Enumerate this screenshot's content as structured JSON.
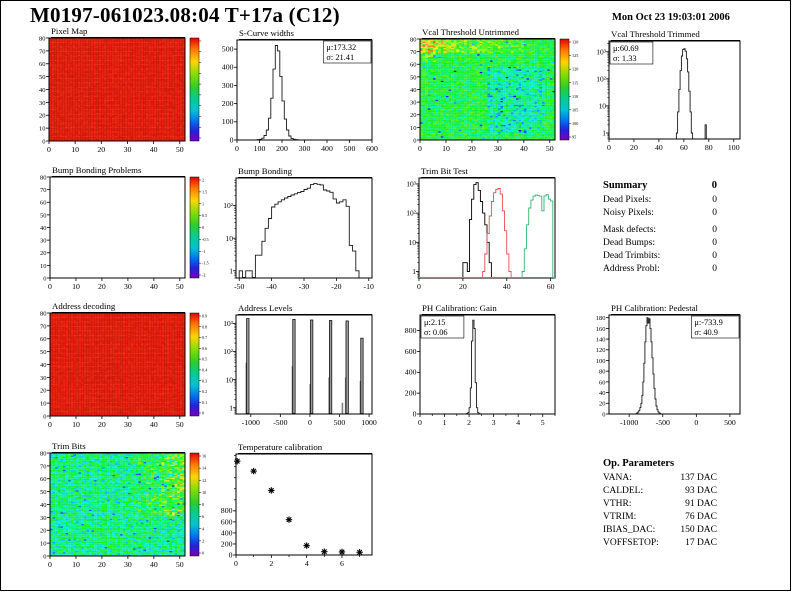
{
  "header": {
    "title": "M0197-061023.08:04 T+17a (C12)",
    "datetime": "Mon Oct 23 19:03:01 2006"
  },
  "summary": {
    "heading": "Summary",
    "heading_value": "0",
    "rows": [
      {
        "label": "Dead Pixels:",
        "value": "0"
      },
      {
        "label": "Noisy Pixels:",
        "value": "0"
      },
      {
        "label": "Mask defects:",
        "value": "0"
      },
      {
        "label": "Dead Bumps:",
        "value": "0"
      },
      {
        "label": "Dead Trimbits:",
        "value": "0"
      },
      {
        "label": "Address Probl:",
        "value": "0"
      }
    ]
  },
  "op_parameters": {
    "heading": "Op. Parameters",
    "rows": [
      {
        "label": "VANA:",
        "value": "137 DAC"
      },
      {
        "label": "CALDEL:",
        "value": "93 DAC"
      },
      {
        "label": "VTHR:",
        "value": "91 DAC"
      },
      {
        "label": "VTRIM:",
        "value": "76 DAC"
      },
      {
        "label": "IBIAS_DAC:",
        "value": "150 DAC"
      },
      {
        "label": "VOFFSETOP:",
        "value": "17 DAC"
      }
    ]
  },
  "chart_data": [
    {
      "key": "pixel_map",
      "type": "heatmap",
      "title": "Pixel Map",
      "x_range": [
        0,
        52
      ],
      "x_ticks": [
        0,
        10,
        20,
        30,
        40,
        50
      ],
      "y_scale": "lin",
      "y_range": [
        0,
        80
      ],
      "y_ticks": [
        0,
        10,
        20,
        30,
        40,
        50,
        60,
        70,
        80
      ],
      "grid": {
        "cols": 52,
        "rows": 80
      },
      "heat": {
        "mode": "red"
      },
      "colorbar": {
        "labels": []
      }
    },
    {
      "key": "scurve_widths",
      "type": "histogram",
      "title": "S-Curve widths",
      "x_range": [
        0,
        600
      ],
      "x_ticks": [
        0,
        100,
        200,
        300,
        400,
        500,
        600
      ],
      "y_scale": "lin",
      "y_range": [
        0,
        550
      ],
      "y_ticks": [
        0,
        100,
        200,
        300,
        400,
        500
      ],
      "stats": [
        "μ:173.32",
        "σ: 21.41"
      ],
      "stats_side": "right",
      "bins": {
        "start": 80,
        "width": 10,
        "values": [
          1,
          2,
          4,
          10,
          25,
          55,
          120,
          230,
          390,
          520,
          490,
          350,
          215,
          115,
          55,
          22,
          9,
          4,
          2,
          1
        ]
      }
    },
    {
      "key": "vcal_untrimmed",
      "type": "heatmap",
      "title": "Vcal Threshold Untrimmed",
      "x_range": [
        0,
        52
      ],
      "x_ticks": [
        0,
        10,
        20,
        30,
        40,
        50
      ],
      "y_scale": "lin",
      "y_range": [
        0,
        80
      ],
      "y_ticks": [
        0,
        10,
        20,
        30,
        40,
        50,
        60,
        70,
        80
      ],
      "grid": {
        "cols": 52,
        "rows": 80
      },
      "heat": {
        "mode": "vcal",
        "value_range": [
          90,
          132
        ]
      },
      "colorbar": {
        "labels": [
          "130",
          "125",
          "120",
          "115",
          "110",
          "105",
          "100",
          "95"
        ]
      }
    },
    {
      "key": "vcal_trimmed",
      "type": "histogram",
      "title": "Vcal Threshold Trimmed",
      "x_range": [
        0,
        105
      ],
      "x_ticks": [
        0,
        20,
        40,
        60,
        80,
        100
      ],
      "y_scale": "log",
      "y_range": [
        0.6,
        2500
      ],
      "y_ticks": [
        {
          "v": 1,
          "label": "1"
        },
        {
          "v": 10,
          "label": "10"
        },
        {
          "v": 100,
          "label": "10²"
        },
        {
          "v": 1000,
          "label": "10³"
        }
      ],
      "stats": [
        "μ:60.69",
        "σ: 1.33"
      ],
      "stats_side": "left",
      "bins": {
        "start": 54,
        "width": 1,
        "values": [
          1,
          6,
          40,
          200,
          700,
          1200,
          1300,
          1050,
          550,
          180,
          35,
          6,
          1
        ]
      },
      "extra_bins": [
        {
          "x": 77,
          "v": 2
        }
      ]
    },
    {
      "key": "bump_problems",
      "type": "heatmap",
      "title": "Bump Bonding Problems",
      "x_range": [
        0,
        52
      ],
      "x_ticks": [
        0,
        10,
        20,
        30,
        40,
        50
      ],
      "y_scale": "lin",
      "y_range": [
        0,
        80
      ],
      "y_ticks": [
        0,
        10,
        20,
        30,
        40,
        50,
        60,
        70,
        80
      ],
      "heat": {
        "mode": "none"
      },
      "colorbar": {
        "labels": [
          "2",
          "1.5",
          "1",
          "0.5",
          "0",
          "-0.5",
          "-1",
          "-1.5",
          "-2"
        ]
      }
    },
    {
      "key": "bump_bonding",
      "type": "histogram",
      "title": "Bump Bonding",
      "x_range": [
        -51,
        -9
      ],
      "x_ticks": [
        -50,
        -40,
        -30,
        -20,
        -10
      ],
      "y_scale": "log",
      "y_range": [
        0.6,
        700
      ],
      "y_ticks": [
        {
          "v": 1,
          "label": "1"
        },
        {
          "v": 10,
          "label": "10"
        },
        {
          "v": 100,
          "label": "10²"
        }
      ],
      "bins": {
        "start": -50,
        "width": 1,
        "values": [
          1,
          0,
          1,
          1,
          0,
          3,
          3,
          8,
          20,
          40,
          90,
          110,
          130,
          150,
          170,
          190,
          210,
          230,
          250,
          270,
          310,
          340,
          440,
          470,
          450,
          430,
          300,
          280,
          255,
          160,
          120,
          130,
          150,
          95,
          6,
          4,
          1
        ]
      }
    },
    {
      "key": "trim_bit_test",
      "type": "histogram-multi",
      "title": "Trim Bit Test",
      "x_range": [
        0,
        62
      ],
      "x_ticks": [
        0,
        20,
        40,
        60
      ],
      "y_scale": "log",
      "y_range": [
        0.6,
        1600
      ],
      "y_ticks": [
        {
          "v": 1,
          "label": "1"
        },
        {
          "v": 10,
          "label": "10"
        },
        {
          "v": 100,
          "label": "10²"
        },
        {
          "v": 1000,
          "label": "10³"
        }
      ],
      "series": [
        {
          "color": "#000000",
          "start": 19,
          "values": [
            0,
            2,
            2,
            1,
            60,
            300,
            950,
            1100,
            600,
            250,
            100,
            40,
            10,
            2
          ]
        },
        {
          "color": "#e05353",
          "start": 29,
          "values": [
            1,
            4,
            20,
            80,
            250,
            500,
            650,
            700,
            450,
            120,
            25,
            4,
            1
          ]
        },
        {
          "color": "#3cb371",
          "start": 47,
          "values": [
            1,
            6,
            40,
            150,
            280,
            380,
            420,
            400,
            380,
            120,
            390,
            430,
            300,
            260
          ]
        }
      ]
    },
    {
      "key": "address_decoding",
      "type": "heatmap",
      "title": "Address decoding",
      "x_range": [
        0,
        52
      ],
      "x_ticks": [
        0,
        10,
        20,
        30,
        40,
        50
      ],
      "y_scale": "lin",
      "y_range": [
        0,
        80
      ],
      "y_ticks": [
        0,
        10,
        20,
        30,
        40,
        50,
        60,
        70,
        80
      ],
      "grid": {
        "cols": 52,
        "rows": 80
      },
      "heat": {
        "mode": "red"
      },
      "colorbar": {
        "labels": [
          "0.9",
          "0.8",
          "0.7",
          "0.6",
          "0.5",
          "0.4",
          "0.3",
          "0.2",
          "0.1",
          "0"
        ]
      }
    },
    {
      "key": "address_levels",
      "type": "spikes",
      "title": "Address Levels",
      "x_range": [
        -1250,
        1050
      ],
      "x_ticks": [
        -1000,
        -500,
        0,
        500,
        1000
      ],
      "y_scale": "log",
      "y_range": [
        0.6,
        2000
      ],
      "y_ticks": [
        {
          "v": 1,
          "label": "1"
        },
        {
          "v": 10,
          "label": "10"
        },
        {
          "v": 100,
          "label": "10²"
        },
        {
          "v": 1000,
          "label": "10³"
        }
      ],
      "spikes": {
        "main": [
          [
            -1050,
            1500
          ],
          [
            -270,
            1400
          ],
          [
            30,
            1330
          ],
          [
            350,
            1280
          ],
          [
            630,
            1230
          ],
          [
            880,
            300
          ]
        ],
        "minor": [
          [
            -1075,
            40
          ],
          [
            -295,
            30
          ],
          [
            5,
            7
          ],
          [
            325,
            12
          ],
          [
            605,
            12
          ],
          [
            855,
            9
          ],
          [
            550,
            1.5
          ]
        ]
      }
    },
    {
      "key": "ph_gain",
      "type": "histogram",
      "title": "PH Calibration: Gain",
      "x_range": [
        0,
        5.5
      ],
      "x_ticks": [
        0,
        1,
        2,
        3,
        4,
        5
      ],
      "x_minor": [
        0.5,
        1.5,
        2.5,
        3.5,
        4.5,
        5.5
      ],
      "y_scale": "lin",
      "y_range": [
        0,
        950
      ],
      "y_ticks": [
        0,
        200,
        400,
        600,
        800
      ],
      "stats": [
        "μ:2.15",
        "σ: 0.06"
      ],
      "stats_side": "left",
      "bins": {
        "start": 1.85,
        "width": 0.05,
        "values": [
          2,
          5,
          15,
          60,
          250,
          700,
          900,
          820,
          300,
          60,
          12,
          4,
          2
        ]
      }
    },
    {
      "key": "ph_pedestal",
      "type": "histogram",
      "title": "PH Calibration: Pedestal",
      "x_range": [
        -1300,
        650
      ],
      "x_ticks": [
        -1000,
        -500,
        0,
        500
      ],
      "y_scale": "lin",
      "y_range": [
        0,
        185
      ],
      "y_ticks": [
        0,
        20,
        40,
        60,
        80,
        100,
        120,
        140,
        160,
        180
      ],
      "stats": [
        "μ:-733.9",
        "σ: 40.9"
      ],
      "stats_side": "right",
      "bins": {
        "start": -900,
        "width": 15,
        "values": [
          1,
          2,
          4,
          7,
          12,
          20,
          35,
          60,
          95,
          135,
          165,
          180,
          170,
          178,
          160,
          135,
          105,
          75,
          48,
          28,
          15,
          8,
          4,
          2,
          1
        ]
      }
    },
    {
      "key": "trim_bits",
      "type": "heatmap",
      "title": "Trim Bits",
      "x_range": [
        0,
        52
      ],
      "x_ticks": [
        0,
        10,
        20,
        30,
        40,
        50
      ],
      "y_scale": "lin",
      "y_range": [
        0,
        80
      ],
      "y_ticks": [
        0,
        10,
        20,
        30,
        40,
        50,
        60,
        70,
        80
      ],
      "grid": {
        "cols": 52,
        "rows": 80
      },
      "heat": {
        "mode": "trim",
        "value_range": [
          0,
          16
        ]
      },
      "colorbar": {
        "labels": [
          "16",
          "14",
          "12",
          "10",
          "8",
          "6",
          "4",
          "2",
          "0"
        ]
      }
    },
    {
      "key": "temp_calibration",
      "type": "scatter",
      "title": "Temperature calibration",
      "x_range": [
        0,
        7.7
      ],
      "x_ticks": [
        0,
        2,
        4,
        6
      ],
      "x_minor": [
        1,
        3,
        5,
        7
      ],
      "y_scale": "lin",
      "y_range": [
        0,
        1830
      ],
      "y_ticks": [
        0,
        200,
        400,
        600,
        800
      ],
      "y_minor": [
        1000,
        1200,
        1400,
        1600,
        1800
      ],
      "marker": "asterisk",
      "points": [
        [
          0.07,
          1700
        ],
        [
          1,
          1520
        ],
        [
          2,
          1170
        ],
        [
          3,
          640
        ],
        [
          4,
          170
        ],
        [
          5,
          60
        ],
        [
          6,
          55
        ],
        [
          7,
          50
        ]
      ]
    }
  ]
}
